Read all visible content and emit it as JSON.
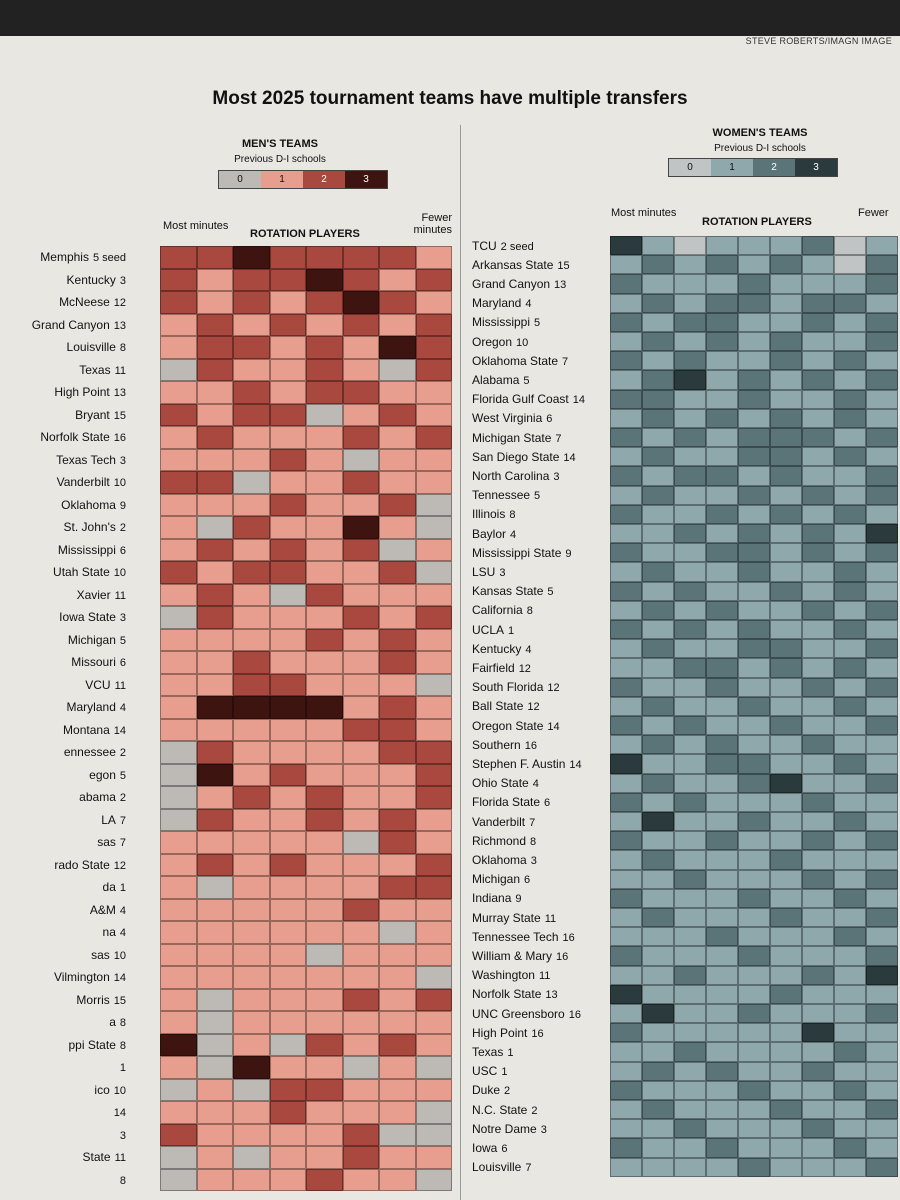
{
  "credit": "STEVE ROBERTS/IMAGN IMAGE",
  "title": "Most 2025 tournament teams have multiple transfers",
  "men": {
    "panel_title": "MEN'S TEAMS",
    "legend_title": "Previous D-I schools",
    "legend": [
      "0",
      "1",
      "2",
      "3"
    ],
    "colors": [
      "#bdbab6",
      "#e89e8e",
      "#a8483e",
      "#3e1410"
    ],
    "left_header": "Most minutes",
    "center_header": "ROTATION PLAYERS",
    "right_header": "Fewer minutes"
  },
  "women": {
    "panel_title": "WOMEN'S TEAMS",
    "legend_title": "Previous D-I schools",
    "legend": [
      "0",
      "1",
      "2",
      "3"
    ],
    "colors": [
      "#c1c4c4",
      "#8fa8ab",
      "#5a7478",
      "#2b3a3d"
    ],
    "left_header": "Most minutes",
    "center_header": "ROTATION PLAYERS",
    "right_header": "Fewer"
  },
  "chart_data": {
    "type": "heatmap",
    "title": "Most 2025 tournament teams have multiple transfers",
    "legend_title": "Previous D-I schools",
    "men_teams": [
      {
        "name": "Memphis",
        "seed": "5 seed"
      },
      {
        "name": "Kentucky",
        "seed": "3"
      },
      {
        "name": "McNeese",
        "seed": "12"
      },
      {
        "name": "Grand Canyon",
        "seed": "13"
      },
      {
        "name": "Louisville",
        "seed": "8"
      },
      {
        "name": "Texas",
        "seed": "11"
      },
      {
        "name": "High Point",
        "seed": "13"
      },
      {
        "name": "Bryant",
        "seed": "15"
      },
      {
        "name": "Norfolk State",
        "seed": "16"
      },
      {
        "name": "Texas Tech",
        "seed": "3"
      },
      {
        "name": "Vanderbilt",
        "seed": "10"
      },
      {
        "name": "Oklahoma",
        "seed": "9"
      },
      {
        "name": "St. John's",
        "seed": "2"
      },
      {
        "name": "Mississippi",
        "seed": "6"
      },
      {
        "name": "Utah State",
        "seed": "10"
      },
      {
        "name": "Xavier",
        "seed": "11"
      },
      {
        "name": "Iowa State",
        "seed": "3"
      },
      {
        "name": "Michigan",
        "seed": "5"
      },
      {
        "name": "Missouri",
        "seed": "6"
      },
      {
        "name": "VCU",
        "seed": "11"
      },
      {
        "name": "Maryland",
        "seed": "4"
      },
      {
        "name": "Montana",
        "seed": "14"
      },
      {
        "name": "ennessee",
        "seed": "2"
      },
      {
        "name": "egon",
        "seed": "5"
      },
      {
        "name": "abama",
        "seed": "2"
      },
      {
        "name": "LA",
        "seed": "7"
      },
      {
        "name": "sas",
        "seed": "7"
      },
      {
        "name": "rado State",
        "seed": "12"
      },
      {
        "name": "da",
        "seed": "1"
      },
      {
        "name": "A&M",
        "seed": "4"
      },
      {
        "name": "na",
        "seed": "4"
      },
      {
        "name": "sas",
        "seed": "10"
      },
      {
        "name": "Vilmington",
        "seed": "14"
      },
      {
        "name": "Morris",
        "seed": "15"
      },
      {
        "name": "a",
        "seed": "8"
      },
      {
        "name": "ppi State",
        "seed": "8"
      },
      {
        "name": "",
        "seed": "1"
      },
      {
        "name": "ico",
        "seed": "10"
      },
      {
        "name": "",
        "seed": "14"
      },
      {
        "name": "",
        "seed": "3"
      },
      {
        "name": "State",
        "seed": "11"
      },
      {
        "name": "",
        "seed": "8"
      }
    ],
    "women_teams": [
      {
        "name": "TCU",
        "seed": "2 seed"
      },
      {
        "name": "Arkansas State",
        "seed": "15"
      },
      {
        "name": "Grand Canyon",
        "seed": "13"
      },
      {
        "name": "Maryland",
        "seed": "4"
      },
      {
        "name": "Mississippi",
        "seed": "5"
      },
      {
        "name": "Oregon",
        "seed": "10"
      },
      {
        "name": "Oklahoma State",
        "seed": "7"
      },
      {
        "name": "Alabama",
        "seed": "5"
      },
      {
        "name": "Florida Gulf Coast",
        "seed": "14"
      },
      {
        "name": "West Virginia",
        "seed": "6"
      },
      {
        "name": "Michigan State",
        "seed": "7"
      },
      {
        "name": "San Diego State",
        "seed": "14"
      },
      {
        "name": "North Carolina",
        "seed": "3"
      },
      {
        "name": "Tennessee",
        "seed": "5"
      },
      {
        "name": "Illinois",
        "seed": "8"
      },
      {
        "name": "Baylor",
        "seed": "4"
      },
      {
        "name": "Mississippi State",
        "seed": "9"
      },
      {
        "name": "LSU",
        "seed": "3"
      },
      {
        "name": "Kansas State",
        "seed": "5"
      },
      {
        "name": "California",
        "seed": "8"
      },
      {
        "name": "UCLA",
        "seed": "1"
      },
      {
        "name": "Kentucky",
        "seed": "4"
      },
      {
        "name": "Fairfield",
        "seed": "12"
      },
      {
        "name": "South Florida",
        "seed": "12"
      },
      {
        "name": "Ball State",
        "seed": "12"
      },
      {
        "name": "Oregon State",
        "seed": "14"
      },
      {
        "name": "Southern",
        "seed": "16"
      },
      {
        "name": "Stephen F. Austin",
        "seed": "14"
      },
      {
        "name": "Ohio State",
        "seed": "4"
      },
      {
        "name": "Florida State",
        "seed": "6"
      },
      {
        "name": "Vanderbilt",
        "seed": "7"
      },
      {
        "name": "Richmond",
        "seed": "8"
      },
      {
        "name": "Oklahoma",
        "seed": "3"
      },
      {
        "name": "Michigan",
        "seed": "6"
      },
      {
        "name": "Indiana",
        "seed": "9"
      },
      {
        "name": "Murray State",
        "seed": "11"
      },
      {
        "name": "Tennessee Tech",
        "seed": "16"
      },
      {
        "name": "William & Mary",
        "seed": "16"
      },
      {
        "name": "Washington",
        "seed": "11"
      },
      {
        "name": "Norfolk State",
        "seed": "13"
      },
      {
        "name": "UNC Greensboro",
        "seed": "16"
      },
      {
        "name": "High Point",
        "seed": "16"
      },
      {
        "name": "Texas",
        "seed": "1"
      },
      {
        "name": "USC",
        "seed": "1"
      },
      {
        "name": "Duke",
        "seed": "2"
      },
      {
        "name": "N.C. State",
        "seed": "2"
      },
      {
        "name": "Notre Dame",
        "seed": "3"
      },
      {
        "name": "Iowa",
        "seed": "6"
      },
      {
        "name": "Louisville",
        "seed": "7"
      }
    ],
    "men_values": [
      [
        2,
        2,
        3,
        2,
        2,
        2,
        2,
        1
      ],
      [
        2,
        1,
        2,
        2,
        3,
        2,
        1,
        2
      ],
      [
        2,
        1,
        2,
        1,
        2,
        3,
        2,
        1
      ],
      [
        1,
        2,
        1,
        2,
        1,
        2,
        1,
        2
      ],
      [
        1,
        2,
        2,
        1,
        2,
        1,
        3,
        2
      ],
      [
        0,
        2,
        1,
        1,
        2,
        1,
        0,
        2
      ],
      [
        1,
        1,
        2,
        1,
        2,
        2,
        1,
        1
      ],
      [
        2,
        1,
        2,
        2,
        0,
        1,
        2,
        1
      ],
      [
        1,
        2,
        1,
        1,
        1,
        2,
        1,
        2
      ],
      [
        1,
        1,
        1,
        2,
        1,
        0,
        1,
        1
      ],
      [
        2,
        2,
        0,
        1,
        1,
        2,
        1,
        1
      ],
      [
        1,
        1,
        1,
        2,
        1,
        1,
        2,
        0
      ],
      [
        1,
        0,
        2,
        1,
        1,
        3,
        1,
        0
      ],
      [
        1,
        2,
        1,
        2,
        1,
        2,
        0,
        1
      ],
      [
        2,
        1,
        2,
        2,
        1,
        1,
        2,
        0
      ],
      [
        1,
        2,
        1,
        0,
        2,
        1,
        1,
        1
      ],
      [
        0,
        2,
        1,
        1,
        1,
        2,
        1,
        2
      ],
      [
        1,
        1,
        1,
        1,
        2,
        1,
        2,
        1
      ],
      [
        1,
        1,
        2,
        1,
        1,
        1,
        2,
        1
      ],
      [
        1,
        1,
        2,
        2,
        1,
        1,
        1,
        0
      ],
      [
        1,
        3,
        3,
        3,
        3,
        1,
        2,
        1
      ],
      [
        1,
        1,
        1,
        1,
        1,
        2,
        2,
        1
      ],
      [
        0,
        2,
        1,
        1,
        1,
        1,
        2,
        2
      ],
      [
        0,
        3,
        1,
        2,
        1,
        1,
        1,
        2
      ],
      [
        0,
        1,
        2,
        1,
        2,
        1,
        1,
        2
      ],
      [
        0,
        2,
        1,
        1,
        2,
        1,
        2,
        1
      ],
      [
        1,
        1,
        1,
        1,
        1,
        0,
        2,
        1
      ],
      [
        1,
        2,
        1,
        2,
        1,
        1,
        1,
        2
      ],
      [
        1,
        0,
        1,
        1,
        1,
        1,
        2,
        2
      ],
      [
        1,
        1,
        1,
        1,
        1,
        2,
        1,
        1
      ],
      [
        1,
        1,
        1,
        1,
        1,
        1,
        0,
        1
      ],
      [
        1,
        1,
        1,
        1,
        0,
        1,
        1,
        1
      ],
      [
        1,
        1,
        1,
        1,
        1,
        1,
        1,
        0
      ],
      [
        1,
        0,
        1,
        1,
        1,
        2,
        1,
        2
      ],
      [
        1,
        0,
        1,
        1,
        1,
        1,
        1,
        1
      ],
      [
        3,
        0,
        1,
        0,
        2,
        1,
        2,
        1
      ],
      [
        1,
        0,
        3,
        1,
        1,
        0,
        1,
        0
      ],
      [
        0,
        1,
        0,
        2,
        2,
        1,
        1,
        1
      ],
      [
        1,
        1,
        1,
        2,
        1,
        1,
        1,
        0
      ],
      [
        2,
        1,
        1,
        1,
        1,
        2,
        0,
        0
      ],
      [
        0,
        1,
        0,
        1,
        1,
        2,
        1,
        1
      ],
      [
        0,
        1,
        1,
        1,
        2,
        1,
        1,
        0
      ]
    ],
    "women_values": [
      [
        3,
        1,
        0,
        1,
        1,
        1,
        2,
        0,
        1
      ],
      [
        1,
        2,
        1,
        2,
        1,
        2,
        1,
        0,
        2
      ],
      [
        2,
        1,
        1,
        1,
        2,
        1,
        1,
        1,
        2
      ],
      [
        1,
        2,
        1,
        2,
        2,
        1,
        2,
        2,
        1
      ],
      [
        2,
        1,
        2,
        2,
        1,
        1,
        2,
        1,
        2
      ],
      [
        1,
        2,
        1,
        2,
        1,
        2,
        1,
        1,
        2
      ],
      [
        2,
        1,
        2,
        1,
        1,
        2,
        1,
        2,
        1
      ],
      [
        1,
        2,
        3,
        1,
        2,
        1,
        2,
        1,
        2
      ],
      [
        2,
        2,
        1,
        1,
        2,
        1,
        1,
        2,
        1
      ],
      [
        1,
        2,
        1,
        2,
        1,
        2,
        1,
        2,
        1
      ],
      [
        2,
        1,
        2,
        1,
        2,
        2,
        2,
        1,
        2
      ],
      [
        1,
        2,
        1,
        1,
        2,
        2,
        1,
        2,
        1
      ],
      [
        2,
        1,
        2,
        2,
        1,
        2,
        1,
        1,
        2
      ],
      [
        1,
        2,
        1,
        1,
        2,
        1,
        2,
        1,
        2
      ],
      [
        2,
        1,
        1,
        2,
        1,
        2,
        1,
        2,
        1
      ],
      [
        1,
        1,
        2,
        1,
        2,
        1,
        2,
        1,
        3
      ],
      [
        2,
        1,
        1,
        2,
        2,
        1,
        2,
        1,
        2
      ],
      [
        1,
        2,
        1,
        1,
        2,
        1,
        1,
        2,
        1
      ],
      [
        2,
        1,
        2,
        1,
        1,
        2,
        1,
        2,
        1
      ],
      [
        1,
        2,
        1,
        2,
        1,
        1,
        2,
        1,
        2
      ],
      [
        2,
        1,
        2,
        1,
        2,
        1,
        1,
        2,
        1
      ],
      [
        1,
        2,
        1,
        1,
        2,
        2,
        1,
        1,
        2
      ],
      [
        1,
        1,
        2,
        2,
        1,
        2,
        1,
        2,
        1
      ],
      [
        2,
        1,
        1,
        2,
        1,
        1,
        2,
        1,
        2
      ],
      [
        1,
        2,
        1,
        1,
        2,
        1,
        1,
        2,
        1
      ],
      [
        2,
        1,
        2,
        1,
        1,
        2,
        1,
        1,
        2
      ],
      [
        1,
        2,
        1,
        2,
        1,
        1,
        2,
        1,
        1
      ],
      [
        3,
        1,
        1,
        2,
        2,
        1,
        1,
        2,
        1
      ],
      [
        1,
        2,
        1,
        1,
        2,
        3,
        1,
        1,
        2
      ],
      [
        2,
        1,
        2,
        1,
        1,
        1,
        2,
        1,
        1
      ],
      [
        1,
        3,
        1,
        1,
        2,
        1,
        1,
        2,
        1
      ],
      [
        2,
        1,
        1,
        2,
        1,
        1,
        2,
        1,
        2
      ],
      [
        1,
        2,
        1,
        1,
        1,
        2,
        1,
        1,
        1
      ],
      [
        1,
        1,
        2,
        1,
        1,
        1,
        2,
        1,
        2
      ],
      [
        2,
        1,
        1,
        1,
        2,
        1,
        1,
        2,
        1
      ],
      [
        1,
        2,
        1,
        1,
        1,
        2,
        1,
        1,
        2
      ],
      [
        1,
        1,
        1,
        2,
        1,
        1,
        1,
        2,
        1
      ],
      [
        2,
        1,
        1,
        1,
        2,
        1,
        1,
        1,
        2
      ],
      [
        1,
        1,
        2,
        1,
        1,
        1,
        2,
        1,
        3
      ],
      [
        3,
        1,
        1,
        1,
        1,
        2,
        1,
        1,
        1
      ],
      [
        1,
        3,
        1,
        1,
        2,
        1,
        1,
        1,
        2
      ],
      [
        2,
        1,
        1,
        1,
        1,
        1,
        3,
        1,
        1
      ],
      [
        1,
        1,
        2,
        1,
        1,
        1,
        1,
        2,
        1
      ],
      [
        1,
        2,
        1,
        2,
        1,
        1,
        2,
        1,
        1
      ],
      [
        2,
        1,
        1,
        1,
        2,
        1,
        1,
        2,
        1
      ],
      [
        1,
        2,
        1,
        1,
        1,
        2,
        1,
        1,
        2
      ],
      [
        1,
        1,
        2,
        1,
        1,
        1,
        2,
        1,
        1
      ],
      [
        2,
        1,
        1,
        2,
        1,
        1,
        1,
        2,
        1
      ],
      [
        1,
        1,
        1,
        1,
        2,
        1,
        1,
        1,
        2
      ]
    ]
  }
}
